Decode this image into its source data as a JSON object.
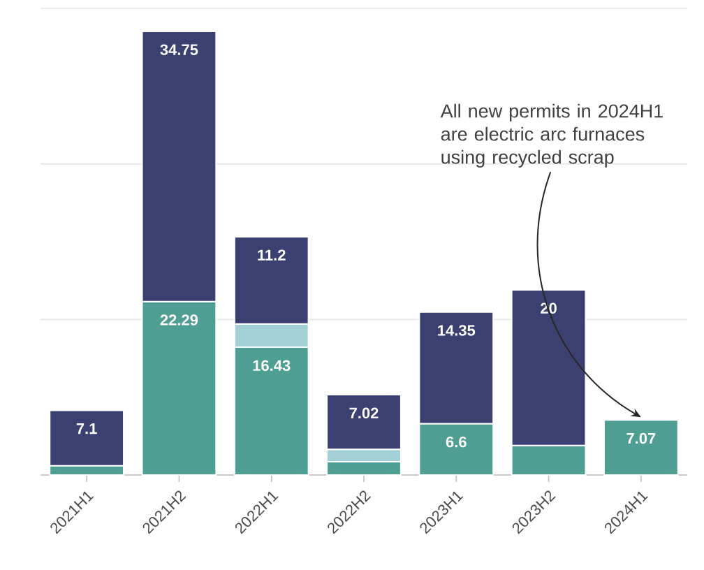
{
  "chart_data": {
    "type": "bar",
    "stacked": true,
    "categories": [
      "2021H1",
      "2021H2",
      "2022H1",
      "2022H2",
      "2023H1",
      "2023H2",
      "2024H1"
    ],
    "series": [
      {
        "color": "#4f9e94",
        "values": [
          1.2,
          22.29,
          16.43,
          1.7,
          6.6,
          3.8,
          7.07
        ],
        "value_labels": [
          null,
          "22.29",
          "16.43",
          null,
          "6.6",
          null,
          "7.07"
        ]
      },
      {
        "color": "#a3cfd6",
        "values": [
          null,
          null,
          3.0,
          1.6,
          null,
          null,
          null
        ]
      },
      {
        "color": "#3a4170",
        "values": [
          7.1,
          34.75,
          11.2,
          7.02,
          14.35,
          20,
          null
        ],
        "value_labels": [
          "7.1",
          "34.75",
          "11.2",
          "7.02",
          "14.35",
          "20",
          null
        ]
      }
    ],
    "ylim": [
      0,
      60
    ],
    "yticks": [
      {
        "value": 0,
        "label": null
      },
      {
        "value": 20,
        "label": null
      },
      {
        "value": 40,
        "label": null
      },
      {
        "value": 60,
        "label": null
      }
    ],
    "tick_labels": "x",
    "grid": "y",
    "annotations": [
      {
        "text": "All new permits in 2024H1 are electric arc furnaces using recycled scrap",
        "x": "2024H1",
        "y": 7.07
      }
    ]
  }
}
